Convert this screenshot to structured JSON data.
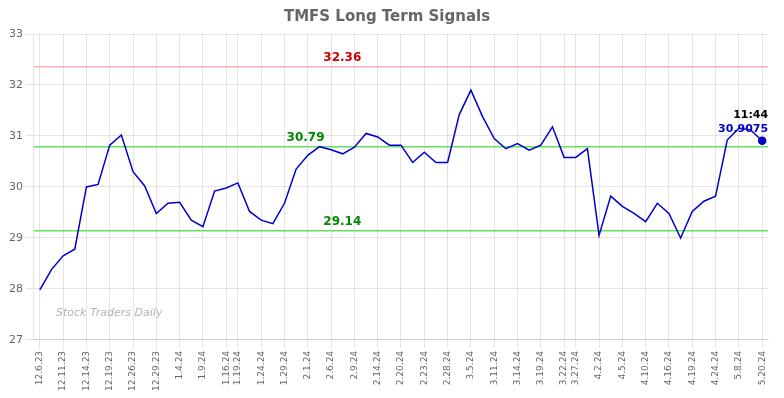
{
  "chart_data": {
    "type": "line",
    "title": "TMFS Long Term Signals",
    "categories": [
      "12.6.23",
      null,
      "12.11.23",
      null,
      "12.14.23",
      null,
      "12.19.23",
      null,
      "12.26.23",
      null,
      "12.29.23",
      null,
      "1.4.24",
      null,
      "1.9.24",
      null,
      "1.16.24",
      "1.19.24",
      null,
      "1.24.24",
      null,
      "1.29.24",
      null,
      "2.1.24",
      null,
      "2.6.24",
      null,
      "2.9.24",
      null,
      "2.14.24",
      null,
      "2.20.24",
      null,
      "2.23.24",
      null,
      "2.28.24",
      null,
      "3.5.24",
      null,
      "3.11.24",
      null,
      "3.14.24",
      null,
      "3.19.24",
      null,
      "3.22.24",
      "3.27.24",
      null,
      "4.2.24",
      null,
      "4.5.24",
      null,
      "4.10.24",
      null,
      "4.16.24",
      null,
      "4.19.24",
      null,
      "4.24.24",
      null,
      "5.8.24",
      null,
      "5.20.24"
    ],
    "values": [
      27.98,
      28.38,
      28.65,
      28.78,
      30.0,
      30.05,
      30.82,
      31.02,
      30.3,
      30.02,
      29.48,
      29.68,
      29.7,
      29.35,
      29.22,
      29.92,
      29.98,
      30.08,
      29.52,
      29.35,
      29.28,
      29.68,
      30.35,
      30.62,
      30.79,
      30.73,
      30.65,
      30.78,
      31.05,
      30.98,
      30.82,
      30.82,
      30.48,
      30.68,
      30.48,
      30.48,
      31.42,
      31.9,
      31.38,
      30.95,
      30.75,
      30.85,
      30.72,
      30.82,
      31.18,
      30.58,
      30.58,
      30.75,
      29.05,
      29.82,
      29.62,
      29.48,
      29.32,
      29.68,
      29.48,
      29.0,
      29.52,
      29.72,
      29.82,
      30.92,
      31.15,
      31.12,
      30.9075
    ],
    "color": "#0000cc",
    "ylim": [
      27,
      33
    ],
    "yticks": [
      27,
      28,
      29,
      30,
      31,
      32,
      33
    ],
    "grid": true,
    "hlines": [
      {
        "value": 32.36,
        "label": "32.36",
        "color": "#ffb3b3",
        "label_color": "#cc0000"
      },
      {
        "value": 30.79,
        "label": "30.79",
        "color": "#66dd66",
        "label_color": "#008800"
      },
      {
        "value": 29.14,
        "label": "29.14",
        "color": "#66dd66",
        "label_color": "#008800"
      }
    ],
    "last_point_labels": [
      {
        "text": "11:44",
        "color": "#000000"
      },
      {
        "text": "30.9075",
        "color": "#0000cc"
      }
    ],
    "watermark": "Stock Traders Daily"
  }
}
